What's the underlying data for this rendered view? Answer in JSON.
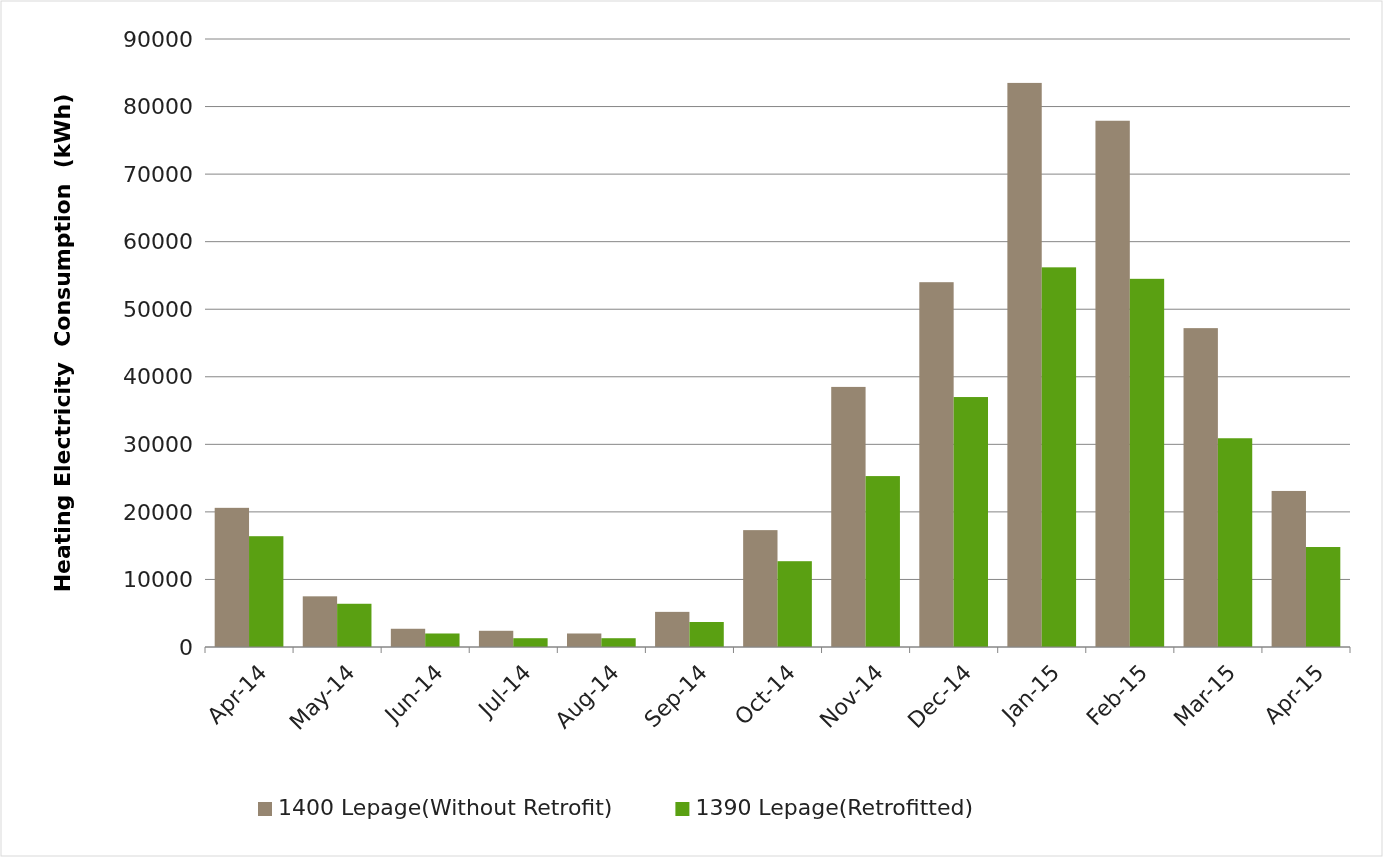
{
  "chart_data": {
    "type": "bar",
    "ylabel": "Heating Electricity  Consumption  (kWh)",
    "categories": [
      "Apr-14",
      "May-14",
      "Jun-14",
      "Jul-14",
      "Aug-14",
      "Sep-14",
      "Oct-14",
      "Nov-14",
      "Dec-14",
      "Jan-15",
      "Feb-15",
      "Mar-15",
      "Apr-15"
    ],
    "series": [
      {
        "name": "1400 Lepage(Without Retrofit)",
        "color": "#968671",
        "values": [
          20600,
          7500,
          2700,
          2400,
          2000,
          5200,
          17300,
          38500,
          54000,
          83500,
          77900,
          47200,
          23100
        ]
      },
      {
        "name": "1390 Lepage(Retrofitted)",
        "color": "#5aa012",
        "values": [
          16400,
          6400,
          2000,
          1300,
          1300,
          3700,
          12700,
          25300,
          37000,
          56200,
          54500,
          30900,
          14800
        ]
      }
    ],
    "ylim": [
      0,
      90000
    ],
    "yticks": [
      0,
      10000,
      20000,
      30000,
      40000,
      50000,
      60000,
      70000,
      80000,
      90000
    ],
    "grid": "y",
    "legend": "bottom"
  }
}
